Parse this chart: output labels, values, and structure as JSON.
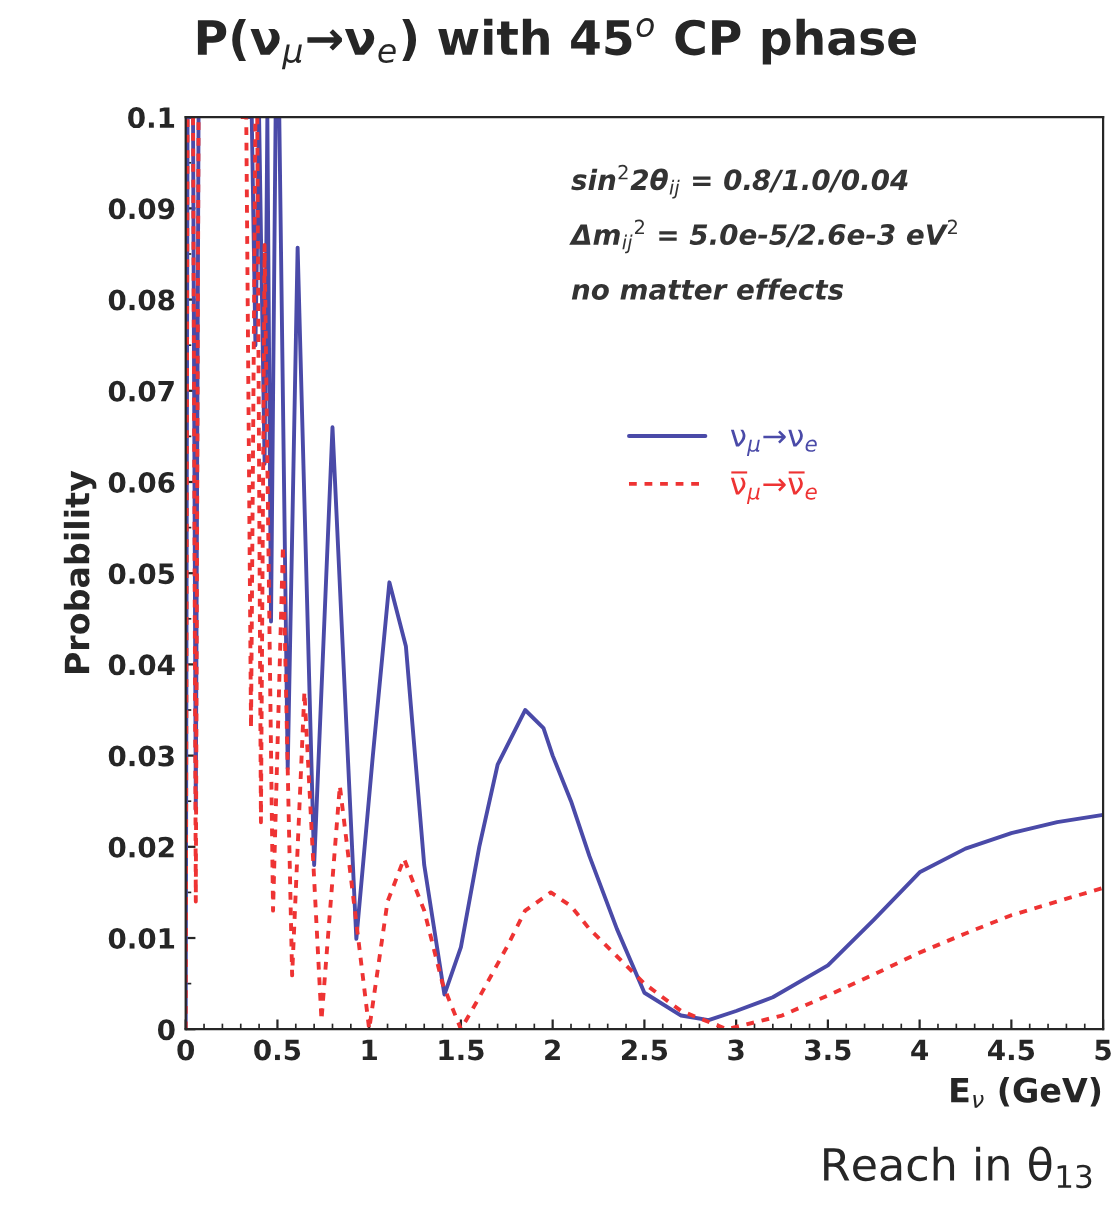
{
  "chart_data": {
    "type": "line",
    "title": "P(ν$_{μ}$→ν$_{e}$) with 45$^{o}$ CP phase",
    "xlabel": "E$_{ν}$ (GeV)",
    "ylabel": "Probability",
    "xlim": [
      0,
      5
    ],
    "xticks": [
      0,
      0.5,
      1,
      1.5,
      2,
      2.5,
      3,
      3.5,
      4,
      4.5,
      5
    ],
    "ylim": [
      0,
      0.1
    ],
    "yticks": [
      0,
      0.01,
      0.02,
      0.03,
      0.04,
      0.05,
      0.06,
      0.07,
      0.08,
      0.09,
      0.1
    ],
    "grid": false,
    "legend": "right",
    "marker": "none",
    "annotations": [
      "sin$^{2}$2θ$_{ij}$ = 0.8/1.0/0.04",
      "Δm$_{ij}$$^{2}$ = 5.0e-5/2.6e-3 eV$^{2}$",
      "no matter effects",
      "Reach in θ$_{13}$"
    ],
    "series": [
      {
        "name": "ν$_{μ}$→ν$_{e}$",
        "color": "#4a4aa8",
        "line_style": "solid",
        "x": [
          0,
          0.01,
          0.04,
          0.055,
          0.07,
          0.09,
          0.34,
          0.36,
          0.38,
          0.4,
          0.43,
          0.445,
          0.465,
          0.49,
          0.51,
          0.556,
          0.61,
          0.7,
          0.8,
          0.93,
          1.02,
          1.11,
          1.2,
          1.3,
          1.41,
          1.5,
          1.6,
          1.7,
          1.85,
          1.95,
          2.0,
          2.1,
          2.2,
          2.35,
          2.5,
          2.7,
          2.85,
          3.0,
          3.2,
          3.5,
          3.75,
          4.0,
          4.25,
          4.5,
          4.75,
          5.0
        ],
        "values": [
          0,
          0.1,
          0.1,
          0.024,
          0.1,
          null,
          0.1,
          0.1,
          0.075,
          0.1,
          0.062,
          0.1,
          0.0447,
          0.1,
          0.1,
          0.0286,
          0.0857,
          0.018,
          0.066,
          0.0099,
          0.03,
          0.049,
          0.042,
          0.018,
          0.0038,
          0.009,
          0.02,
          0.029,
          0.035,
          0.033,
          0.03,
          0.025,
          0.019,
          0.011,
          0.004,
          0.0015,
          0.001,
          0.002,
          0.0035,
          0.007,
          0.012,
          0.0172,
          0.0198,
          0.0215,
          0.0227,
          0.0235
        ]
      },
      {
        "name": "ν̅$_{μ}$→ν̅$_{e}$",
        "color": "#ee3333",
        "line_style": "dashed",
        "x": [
          0,
          0.01,
          0.04,
          0.055,
          0.07,
          0.09,
          0.3,
          0.33,
          0.356,
          0.38,
          0.39,
          0.41,
          0.43,
          0.476,
          0.53,
          0.58,
          0.647,
          0.74,
          0.84,
          1.0,
          1.1,
          1.19,
          1.3,
          1.4,
          1.5,
          1.6,
          1.75,
          1.85,
          1.99,
          2.1,
          2.2,
          2.35,
          2.5,
          2.7,
          2.95,
          3.25,
          3.5,
          3.75,
          4.0,
          4.25,
          4.5,
          4.75,
          5.0
        ],
        "values": [
          0,
          0.1,
          0.1,
          0.014,
          0.1,
          null,
          0.1,
          0.1,
          0.033,
          0.1,
          0.1,
          0.0227,
          0.086,
          0.013,
          0.053,
          0.0059,
          0.037,
          0.001,
          0.0267,
          0,
          0.014,
          0.0187,
          0.013,
          0.005,
          0,
          0.0035,
          0.009,
          0.013,
          0.015,
          0.0135,
          0.011,
          0.008,
          0.005,
          0.002,
          0,
          0.0015,
          0.0037,
          0.006,
          0.0084,
          0.0105,
          0.0125,
          0.014,
          0.0155
        ]
      }
    ]
  }
}
